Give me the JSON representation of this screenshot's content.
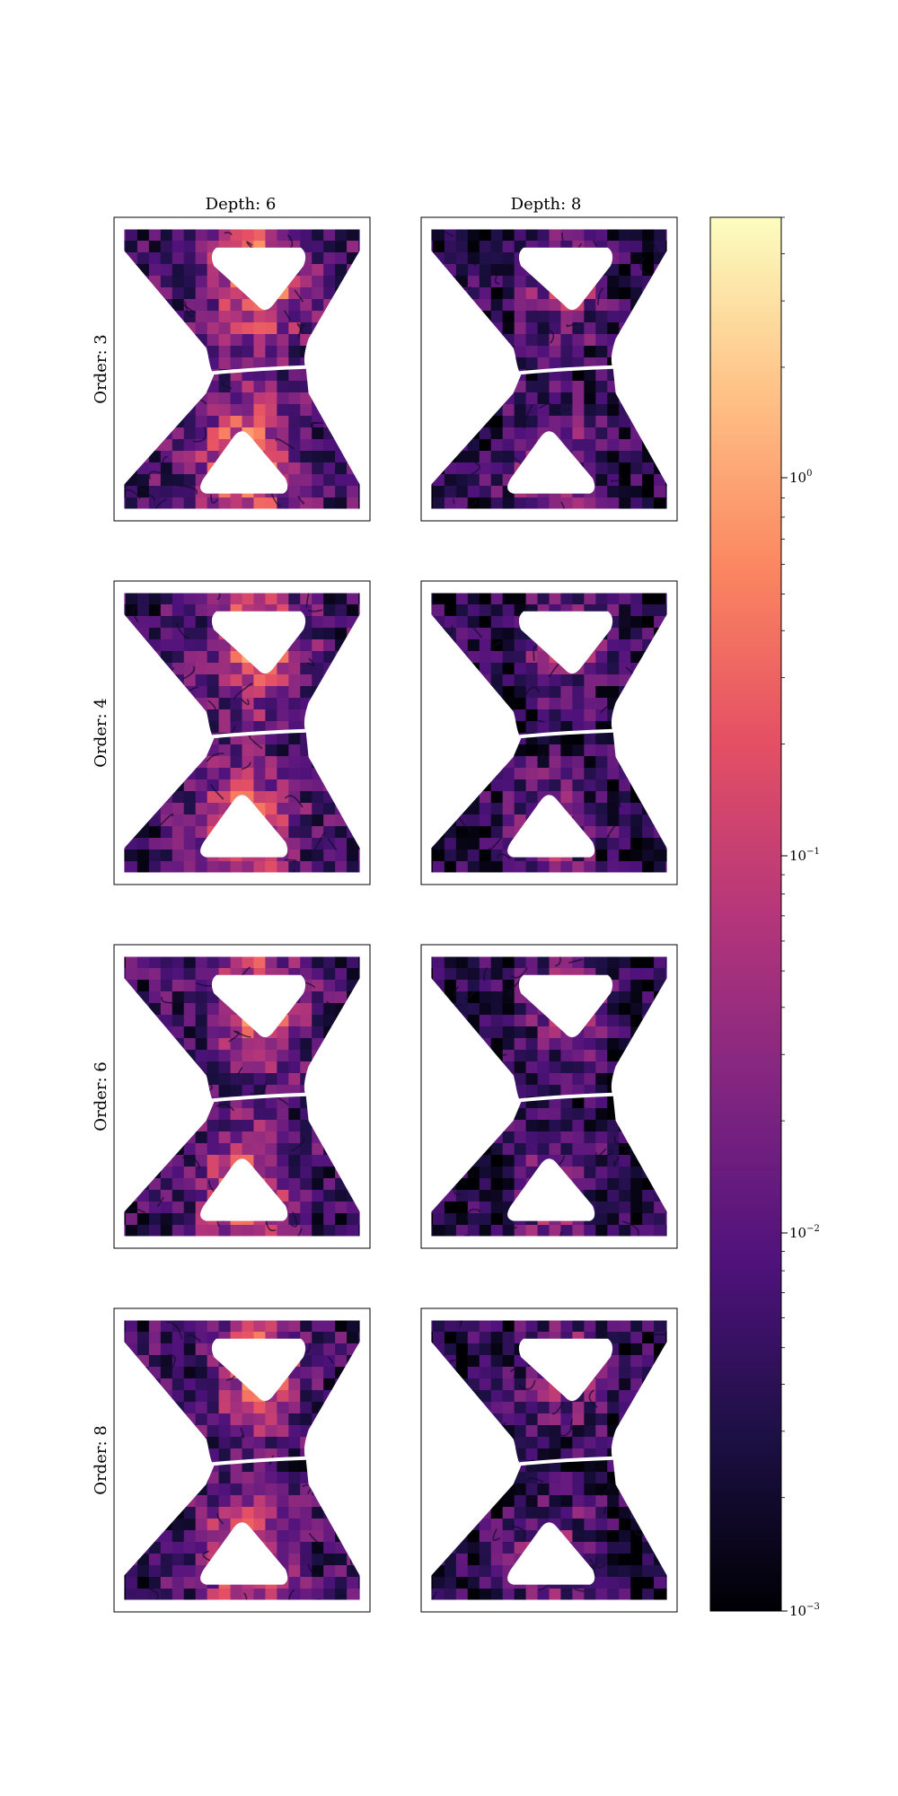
{
  "chart_data": {
    "type": "heatmap",
    "column_titles": [
      "Depth: 6",
      "Depth: 8"
    ],
    "row_titles": [
      "Order: 3",
      "Order: 4",
      "Order: 6",
      "Order: 8"
    ],
    "colorbar": {
      "scale": "log",
      "colormap": "magma",
      "range": [
        0.001,
        5
      ],
      "ticks": [
        {
          "value": 1,
          "base": "10",
          "exp": "0"
        },
        {
          "value": 0.1,
          "base": "10",
          "exp": "−1"
        },
        {
          "value": 0.01,
          "base": "10",
          "exp": "−2"
        },
        {
          "value": 0.001,
          "base": "10",
          "exp": "−3"
        }
      ],
      "colors": [
        "#000004",
        "#1c1044",
        "#4f127b",
        "#812581",
        "#b5367a",
        "#e55064",
        "#fb8761",
        "#fec287",
        "#fcfdbf"
      ]
    },
    "panels": [
      {
        "row": 0,
        "col": 0,
        "level": 0.75
      },
      {
        "row": 0,
        "col": 1,
        "level": 0.45
      },
      {
        "row": 1,
        "col": 0,
        "level": 0.68
      },
      {
        "row": 1,
        "col": 1,
        "level": 0.42
      },
      {
        "row": 2,
        "col": 0,
        "level": 0.66
      },
      {
        "row": 2,
        "col": 1,
        "level": 0.4
      },
      {
        "row": 3,
        "col": 0,
        "level": 0.64
      },
      {
        "row": 3,
        "col": 1,
        "level": 0.4
      }
    ]
  }
}
